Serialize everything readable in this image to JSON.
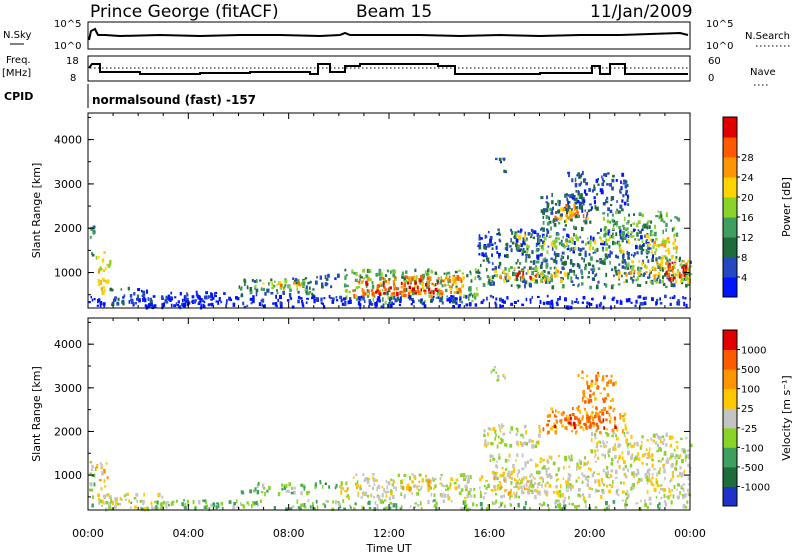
{
  "header": {
    "station": "Prince George (fitACF)",
    "beam": "Beam 15",
    "date": "11/Jan/2009"
  },
  "strip": {
    "nsky_label": "N.Sky",
    "nsky_ticks": [
      "10^5",
      "10^0"
    ],
    "nsearch_label": "N.Search",
    "nsearch_ticks": [
      "10^5",
      "10^0"
    ],
    "freq_label_1": "Freq.",
    "freq_label_2": "[MHz]",
    "freq_ticks": [
      "18",
      "8"
    ],
    "nave_label": "Nave",
    "nave_ticks": [
      "60",
      "0"
    ],
    "cpid_label": "CPID",
    "cpid_text": "normalsound (fast) -157"
  },
  "time_axis": {
    "label": "Time UT",
    "ticks": [
      "00:00",
      "04:00",
      "08:00",
      "12:00",
      "16:00",
      "20:00",
      "00:00"
    ]
  },
  "chart_data": [
    {
      "type": "heatmap",
      "name": "power",
      "ylabel": "Slant Range [km]",
      "yticks": [
        "1000",
        "2000",
        "3000",
        "4000"
      ],
      "ylim": [
        200,
        4600
      ],
      "xlim_hours": [
        0,
        24
      ],
      "colorbar_label": "Power [dB]",
      "colorbar_ticks": [
        "4",
        "8",
        "12",
        "16",
        "20",
        "24",
        "28"
      ],
      "colors": [
        "#0014ff",
        "#2448c0",
        "#1e6b3c",
        "#3f9f5f",
        "#8ad42a",
        "#ffd400",
        "#ff9500",
        "#ff5a00",
        "#e00000"
      ],
      "regions": [
        {
          "t": [
            0.05,
            0.25
          ],
          "r": [
            1400,
            2200
          ],
          "v": 2
        },
        {
          "t": [
            0.25,
            0.85
          ],
          "r": [
            550,
            1500
          ],
          "v": 5
        },
        {
          "t": [
            0.85,
            2.5
          ],
          "r": [
            300,
            700
          ],
          "v": 1
        },
        {
          "t": [
            2.5,
            5.5
          ],
          "r": [
            250,
            600
          ],
          "v": 0
        },
        {
          "t": [
            6.0,
            9.0
          ],
          "r": [
            500,
            900
          ],
          "v": 2
        },
        {
          "t": [
            6.5,
            8.7
          ],
          "r": [
            650,
            850
          ],
          "v": 4
        },
        {
          "t": [
            7.5,
            8.5
          ],
          "r": [
            700,
            800
          ],
          "v": 6
        },
        {
          "t": [
            9.0,
            10.0
          ],
          "r": [
            700,
            1000
          ],
          "v": 1
        },
        {
          "t": [
            10.2,
            15.5
          ],
          "r": [
            350,
            1100
          ],
          "v": 3
        },
        {
          "t": [
            10.5,
            15.0
          ],
          "r": [
            500,
            950
          ],
          "v": 6
        },
        {
          "t": [
            11.0,
            14.0
          ],
          "r": [
            550,
            850
          ],
          "v": 8
        },
        {
          "t": [
            15.5,
            24.0
          ],
          "r": [
            700,
            1400
          ],
          "v": 2
        },
        {
          "t": [
            16.0,
            19.0
          ],
          "r": [
            850,
            1150
          ],
          "v": 5
        },
        {
          "t": [
            17.0,
            18.0
          ],
          "r": [
            900,
            1050
          ],
          "v": 8
        },
        {
          "t": [
            21.0,
            24.0
          ],
          "r": [
            800,
            1300
          ],
          "v": 5
        },
        {
          "t": [
            23.0,
            24.0
          ],
          "r": [
            850,
            1250
          ],
          "v": 8
        },
        {
          "t": [
            15.5,
            22.5
          ],
          "r": [
            1400,
            2000
          ],
          "v": 1
        },
        {
          "t": [
            17.0,
            23.5
          ],
          "r": [
            1500,
            1900
          ],
          "v": 4
        },
        {
          "t": [
            18.0,
            20.0
          ],
          "r": [
            2000,
            2800
          ],
          "v": 2
        },
        {
          "t": [
            18.5,
            20.0
          ],
          "r": [
            2200,
            2550
          ],
          "v": 6
        },
        {
          "t": [
            19.0,
            21.5
          ],
          "r": [
            2400,
            3300
          ],
          "v": 1
        },
        {
          "t": [
            20.5,
            23.5
          ],
          "r": [
            1900,
            2400
          ],
          "v": 3
        },
        {
          "t": [
            22.5,
            23.5
          ],
          "r": [
            1200,
            1800
          ],
          "v": 5
        },
        {
          "t": [
            16.2,
            16.6
          ],
          "r": [
            3200,
            3600
          ],
          "v": 1
        },
        {
          "t": [
            0.0,
            24.0
          ],
          "r": [
            250,
            500
          ],
          "v": 0
        }
      ]
    },
    {
      "type": "heatmap",
      "name": "velocity",
      "ylabel": "Slant Range [km]",
      "yticks": [
        "1000",
        "2000",
        "3000",
        "4000"
      ],
      "ylim": [
        200,
        4600
      ],
      "xlim_hours": [
        0,
        24
      ],
      "colorbar_label": "Velocity [m s⁻¹]",
      "colorbar_ticks": [
        "1000",
        "500",
        "100",
        "25",
        "-25",
        "-100",
        "-500",
        "-1000"
      ],
      "colors": [
        "#1e32c8",
        "#1e6b3c",
        "#3f9f5f",
        "#8ad42a",
        "#c4c4c4",
        "#ffc800",
        "#ff9500",
        "#ff5a00",
        "#e00000"
      ],
      "regions": [
        {
          "t": [
            0.05,
            0.3
          ],
          "r": [
            300,
            1500
          ],
          "v": 3
        },
        {
          "t": [
            0.3,
            0.8
          ],
          "r": [
            400,
            1300
          ],
          "v": 5
        },
        {
          "t": [
            0.8,
            3.0
          ],
          "r": [
            250,
            600
          ],
          "v": 4
        },
        {
          "t": [
            6.0,
            9.0
          ],
          "r": [
            600,
            850
          ],
          "v": 3
        },
        {
          "t": [
            9.0,
            10.0
          ],
          "r": [
            700,
            900
          ],
          "v": 2
        },
        {
          "t": [
            10.0,
            16.0
          ],
          "r": [
            500,
            1050
          ],
          "v": 4
        },
        {
          "t": [
            10.0,
            11.0
          ],
          "r": [
            600,
            800
          ],
          "v": 5
        },
        {
          "t": [
            12.5,
            14.0
          ],
          "r": [
            700,
            900
          ],
          "v": 5
        },
        {
          "t": [
            16.0,
            24.0
          ],
          "r": [
            500,
            1500
          ],
          "v": 4
        },
        {
          "t": [
            16.0,
            18.0
          ],
          "r": [
            600,
            1000
          ],
          "v": 5
        },
        {
          "t": [
            15.5,
            18.0
          ],
          "r": [
            1700,
            2200
          ],
          "v": 4
        },
        {
          "t": [
            18.0,
            21.5
          ],
          "r": [
            2000,
            2600
          ],
          "v": 6
        },
        {
          "t": [
            18.5,
            21.0
          ],
          "r": [
            2100,
            2400
          ],
          "v": 7
        },
        {
          "t": [
            20.0,
            24.0
          ],
          "r": [
            1400,
            2000
          ],
          "v": 4
        },
        {
          "t": [
            19.5,
            21.0
          ],
          "r": [
            2700,
            3400
          ],
          "v": 6
        },
        {
          "t": [
            16.0,
            16.6
          ],
          "r": [
            3200,
            3500
          ],
          "v": 4
        },
        {
          "t": [
            0.0,
            24.0
          ],
          "r": [
            250,
            450
          ],
          "v": 3
        }
      ]
    }
  ]
}
